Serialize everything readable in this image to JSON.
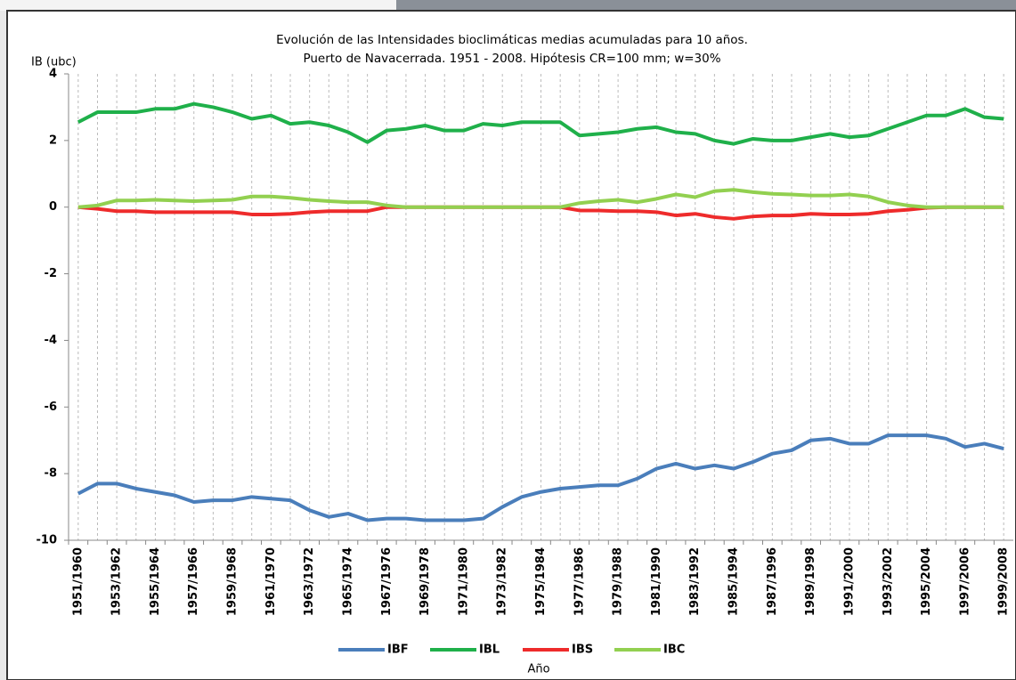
{
  "chart_data": {
    "type": "line",
    "title": "Evolución de las Intensidades bioclimáticas medias acumuladas para 10 años.",
    "subtitle": "Puerto de Navacerrada. 1951 - 2008. Hipótesis CR=100 mm; w=30%",
    "y_label": "IB (ubc)",
    "x_label": "Año",
    "categories": [
      "1951/1960",
      null,
      "1953/1962",
      null,
      "1955/1964",
      null,
      "1957/1966",
      null,
      "1959/1968",
      null,
      "1961/1970",
      null,
      "1963/1972",
      null,
      "1965/1974",
      null,
      "1967/1976",
      null,
      "1969/1978",
      null,
      "1971/1980",
      null,
      "1973/1982",
      null,
      "1975/1984",
      null,
      "1977/1986",
      null,
      "1979/1988",
      null,
      "1981/1990",
      null,
      "1983/1992",
      null,
      "1985/1994",
      null,
      "1987/1996",
      null,
      "1989/1998",
      null,
      "1991/2000",
      null,
      "1993/2002",
      null,
      "1995/2004",
      null,
      "1997/2006",
      null,
      "1999/2008"
    ],
    "series": [
      {
        "name": "IBF",
        "color": "#4a7ebb",
        "values": [
          -8.6,
          -8.3,
          -8.3,
          -8.45,
          -8.55,
          -8.65,
          -8.85,
          -8.8,
          -8.8,
          -8.7,
          -8.75,
          -8.8,
          -9.1,
          -9.3,
          -9.2,
          -9.4,
          -9.35,
          -9.35,
          -9.4,
          -9.4,
          -9.4,
          -9.35,
          -9.0,
          -8.7,
          -8.55,
          -8.45,
          -8.4,
          -8.35,
          -8.35,
          -8.15,
          -7.85,
          -7.7,
          -7.85,
          -7.75,
          -7.85,
          -7.65,
          -7.4,
          -7.3,
          -7.0,
          -6.95,
          -7.1,
          -7.1,
          -6.85,
          -6.85,
          -6.85,
          -6.95,
          -7.2,
          -7.1,
          -7.25
        ]
      },
      {
        "name": "IBL",
        "color": "#1fb04a",
        "values": [
          2.55,
          2.85,
          2.85,
          2.85,
          2.95,
          2.95,
          3.1,
          3.0,
          2.85,
          2.65,
          2.75,
          2.5,
          2.55,
          2.45,
          2.25,
          1.95,
          2.3,
          2.35,
          2.45,
          2.3,
          2.3,
          2.5,
          2.45,
          2.55,
          2.55,
          2.55,
          2.15,
          2.2,
          2.25,
          2.35,
          2.4,
          2.25,
          2.2,
          2.0,
          1.9,
          2.05,
          2.0,
          2.0,
          2.1,
          2.2,
          2.1,
          2.15,
          2.35,
          2.55,
          2.75,
          2.75,
          2.95,
          2.7,
          2.65
        ]
      },
      {
        "name": "IBS",
        "color": "#ee2b2b",
        "values": [
          0,
          -0.05,
          -0.12,
          -0.12,
          -0.15,
          -0.15,
          -0.15,
          -0.15,
          -0.15,
          -0.22,
          -0.22,
          -0.2,
          -0.15,
          -0.12,
          -0.12,
          -0.12,
          0,
          0,
          0,
          0,
          0,
          0,
          0,
          0,
          0,
          0,
          -0.1,
          -0.1,
          -0.12,
          -0.12,
          -0.15,
          -0.25,
          -0.2,
          -0.3,
          -0.35,
          -0.28,
          -0.25,
          -0.25,
          -0.2,
          -0.22,
          -0.22,
          -0.2,
          -0.12,
          -0.08,
          -0.02,
          0,
          0,
          0,
          0
        ]
      },
      {
        "name": "IBC",
        "color": "#92d050",
        "values": [
          0,
          0.05,
          0.2,
          0.2,
          0.22,
          0.2,
          0.18,
          0.2,
          0.22,
          0.32,
          0.32,
          0.28,
          0.22,
          0.18,
          0.15,
          0.15,
          0.05,
          0,
          0,
          0,
          0,
          0,
          0,
          0,
          0,
          0,
          0.12,
          0.18,
          0.22,
          0.15,
          0.25,
          0.38,
          0.3,
          0.48,
          0.52,
          0.45,
          0.4,
          0.38,
          0.35,
          0.35,
          0.38,
          0.32,
          0.15,
          0.05,
          0,
          0,
          0,
          0,
          0
        ]
      }
    ],
    "ylim": [
      -10,
      4
    ],
    "yticks": [
      4,
      2,
      0,
      -2,
      -4,
      -6,
      -8,
      -10
    ],
    "xgrid": true,
    "ygrid": false,
    "legend": "bottom"
  }
}
